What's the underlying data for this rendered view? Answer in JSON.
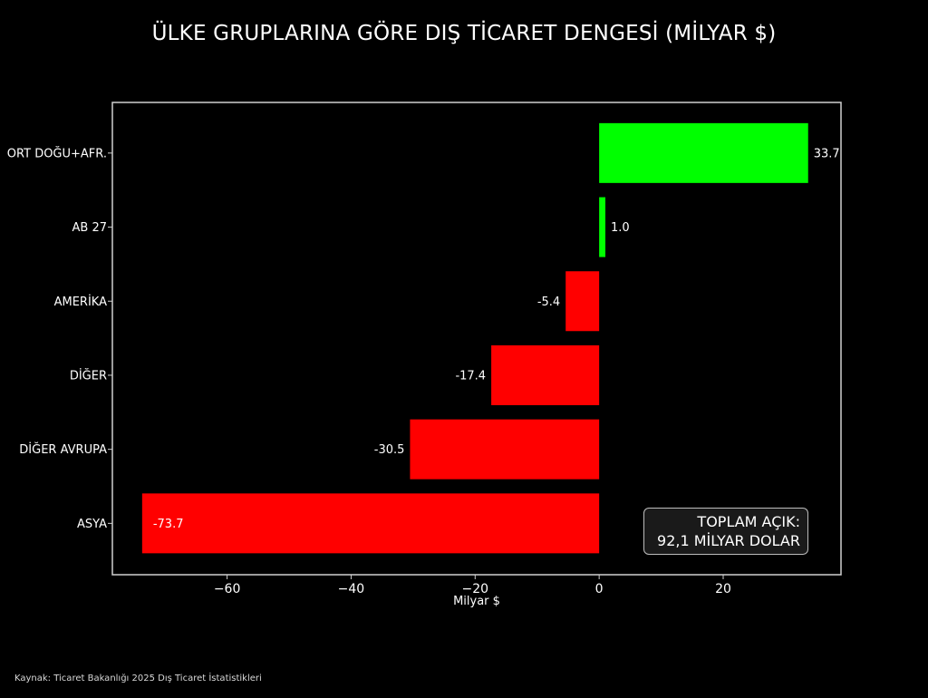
{
  "title": "ÜLKE GRUPLARINA GÖRE DIŞ TİCARET DENGESİ (MİLYAR $)",
  "source": "Kaynak: Ticaret Bakanlığı 2025 Dış Ticaret İstatistikleri",
  "annotation": {
    "line1": "TOPLAM AÇIK:",
    "line2": "92,1 MİLYAR DOLAR"
  },
  "colors": {
    "background": "#000000",
    "positive": "#00ff00",
    "negative": "#ff0000",
    "axis": "#d0d0d0",
    "text": "#ffffff"
  },
  "chart_data": {
    "type": "bar",
    "orientation": "horizontal",
    "title": "ÜLKE GRUPLARINA GÖRE DIŞ TİCARET DENGESİ (MİLYAR $)",
    "xlabel": "Milyar $",
    "ylabel": "",
    "categories": [
      "ORT DOĞU+AFR.",
      "AB 27",
      "AMERİKA",
      "DİĞER",
      "DİĞER AVRUPA",
      "ASYA"
    ],
    "values": [
      33.7,
      1.0,
      -5.4,
      -17.4,
      -30.5,
      -73.7
    ],
    "value_labels": [
      "33.7",
      "1.0",
      "-5.4",
      "-17.4",
      "-30.5",
      "-73.7"
    ],
    "xticks": [
      -60,
      -40,
      -20,
      0,
      20
    ],
    "xtick_labels": [
      "−60",
      "−40",
      "−20",
      "0",
      "20"
    ],
    "xlim": [
      -78.5,
      39
    ],
    "grid": false,
    "legend": "none"
  }
}
